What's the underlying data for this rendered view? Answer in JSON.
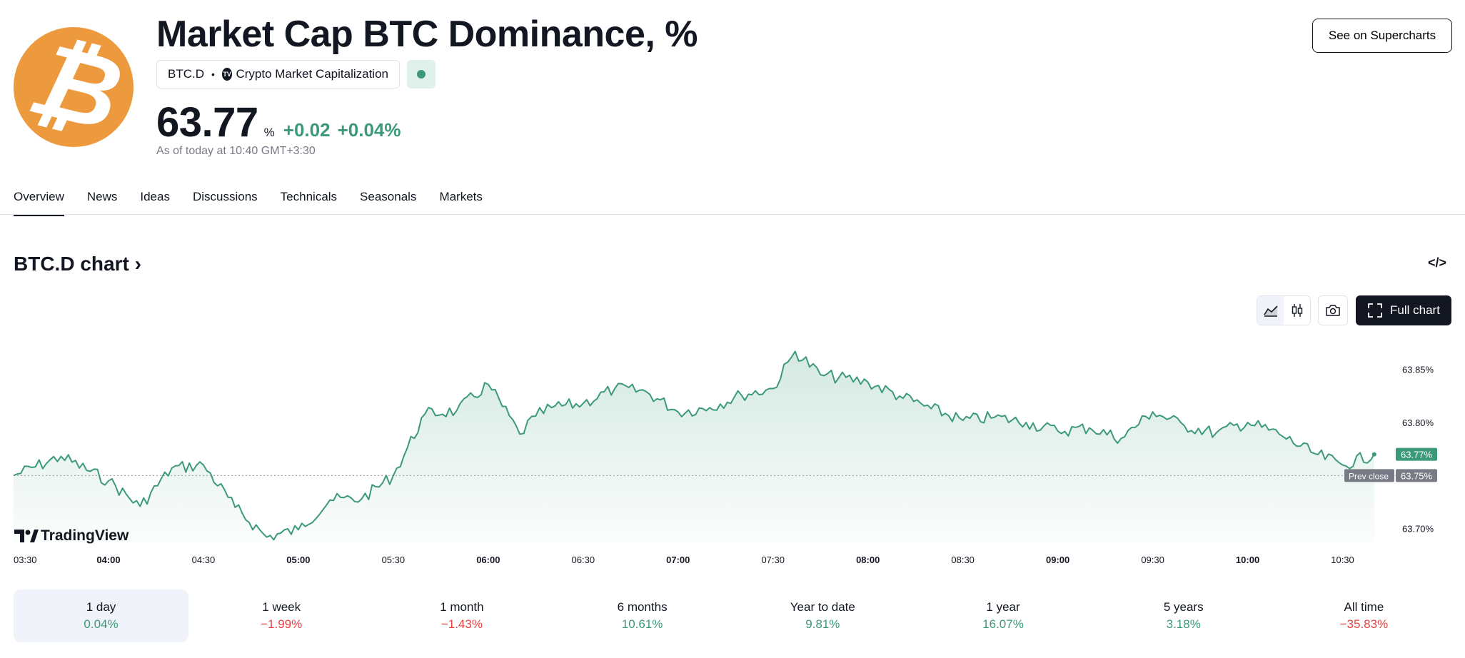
{
  "header": {
    "logo_glyph": "₿",
    "logo_color": "#ED9A3F",
    "title": "Market Cap BTC Dominance, %",
    "symbol": "BTC.D",
    "separator": "•",
    "provider_badge": "TV",
    "provider": "Crypto Market Capitalization",
    "market_status_color": "#3c9a78",
    "price": "63.77",
    "price_unit": "%",
    "change_abs": "+0.02",
    "change_pct": "+0.04%",
    "as_of": "As of today at 10:40 GMT+3:30",
    "supercharts_label": "See on Supercharts"
  },
  "tabs": [
    "Overview",
    "News",
    "Ideas",
    "Discussions",
    "Technicals",
    "Seasonals",
    "Markets"
  ],
  "active_tab": "Overview",
  "chart_section": {
    "heading": "BTC.D chart",
    "chevron": "›",
    "embed_icon": "</>",
    "line_style_icon": "area-chart-icon",
    "candle_style_icon": "candlestick-icon",
    "snapshot_icon": "camera-icon",
    "full_chart_label": "Full chart",
    "full_chart_icon": "fullscreen-icon"
  },
  "chart_data": {
    "type": "area",
    "watermark": "TradingView",
    "x_ticks": [
      "03:30",
      "04:00",
      "04:30",
      "05:00",
      "05:30",
      "06:00",
      "06:30",
      "07:00",
      "07:30",
      "08:00",
      "08:30",
      "09:00",
      "09:30",
      "10:00",
      "10:30"
    ],
    "bold_x_ticks": [
      "04:00",
      "05:00",
      "06:00",
      "07:00",
      "08:00",
      "09:00",
      "10:00"
    ],
    "y_ticks": [
      "63.85%",
      "63.80%",
      "63.70%"
    ],
    "y_range": [
      63.687,
      63.872
    ],
    "prev_close": 63.75,
    "prev_close_label": "Prev close",
    "prev_close_value_label": "63.75%",
    "last_value_label": "63.77%",
    "line_color": "#3c9a78",
    "x": [
      "03:30",
      "03:45",
      "04:00",
      "04:10",
      "04:20",
      "04:30",
      "04:40",
      "04:50",
      "05:00",
      "05:10",
      "05:20",
      "05:30",
      "05:40",
      "05:50",
      "06:00",
      "06:10",
      "06:15",
      "06:20",
      "06:30",
      "06:40",
      "06:50",
      "07:00",
      "07:10",
      "07:20",
      "07:30",
      "07:37",
      "07:45",
      "08:00",
      "08:10",
      "08:20",
      "08:30",
      "08:40",
      "08:50",
      "09:00",
      "09:10",
      "09:20",
      "09:30",
      "09:40",
      "09:50",
      "10:00",
      "10:10",
      "10:20",
      "10:30",
      "10:40"
    ],
    "values": [
      63.75,
      63.768,
      63.745,
      63.721,
      63.757,
      63.76,
      63.72,
      63.692,
      63.699,
      63.727,
      63.728,
      63.75,
      63.808,
      63.811,
      63.836,
      63.789,
      63.806,
      63.814,
      63.818,
      63.832,
      63.829,
      63.81,
      63.814,
      63.826,
      63.832,
      63.867,
      63.845,
      63.838,
      63.825,
      63.813,
      63.802,
      63.805,
      63.8,
      63.792,
      63.795,
      63.785,
      63.81,
      63.797,
      63.79,
      63.8,
      63.789,
      63.772,
      63.76,
      63.77
    ]
  },
  "periods": [
    {
      "label": "1 day",
      "value": "0.04%",
      "sign": "pos"
    },
    {
      "label": "1 week",
      "value": "−1.99%",
      "sign": "neg"
    },
    {
      "label": "1 month",
      "value": "−1.43%",
      "sign": "neg"
    },
    {
      "label": "6 months",
      "value": "10.61%",
      "sign": "pos"
    },
    {
      "label": "Year to date",
      "value": "9.81%",
      "sign": "pos"
    },
    {
      "label": "1 year",
      "value": "16.07%",
      "sign": "pos"
    },
    {
      "label": "5 years",
      "value": "3.18%",
      "sign": "pos"
    },
    {
      "label": "All time",
      "value": "−35.83%",
      "sign": "neg"
    }
  ],
  "active_period": "1 day"
}
